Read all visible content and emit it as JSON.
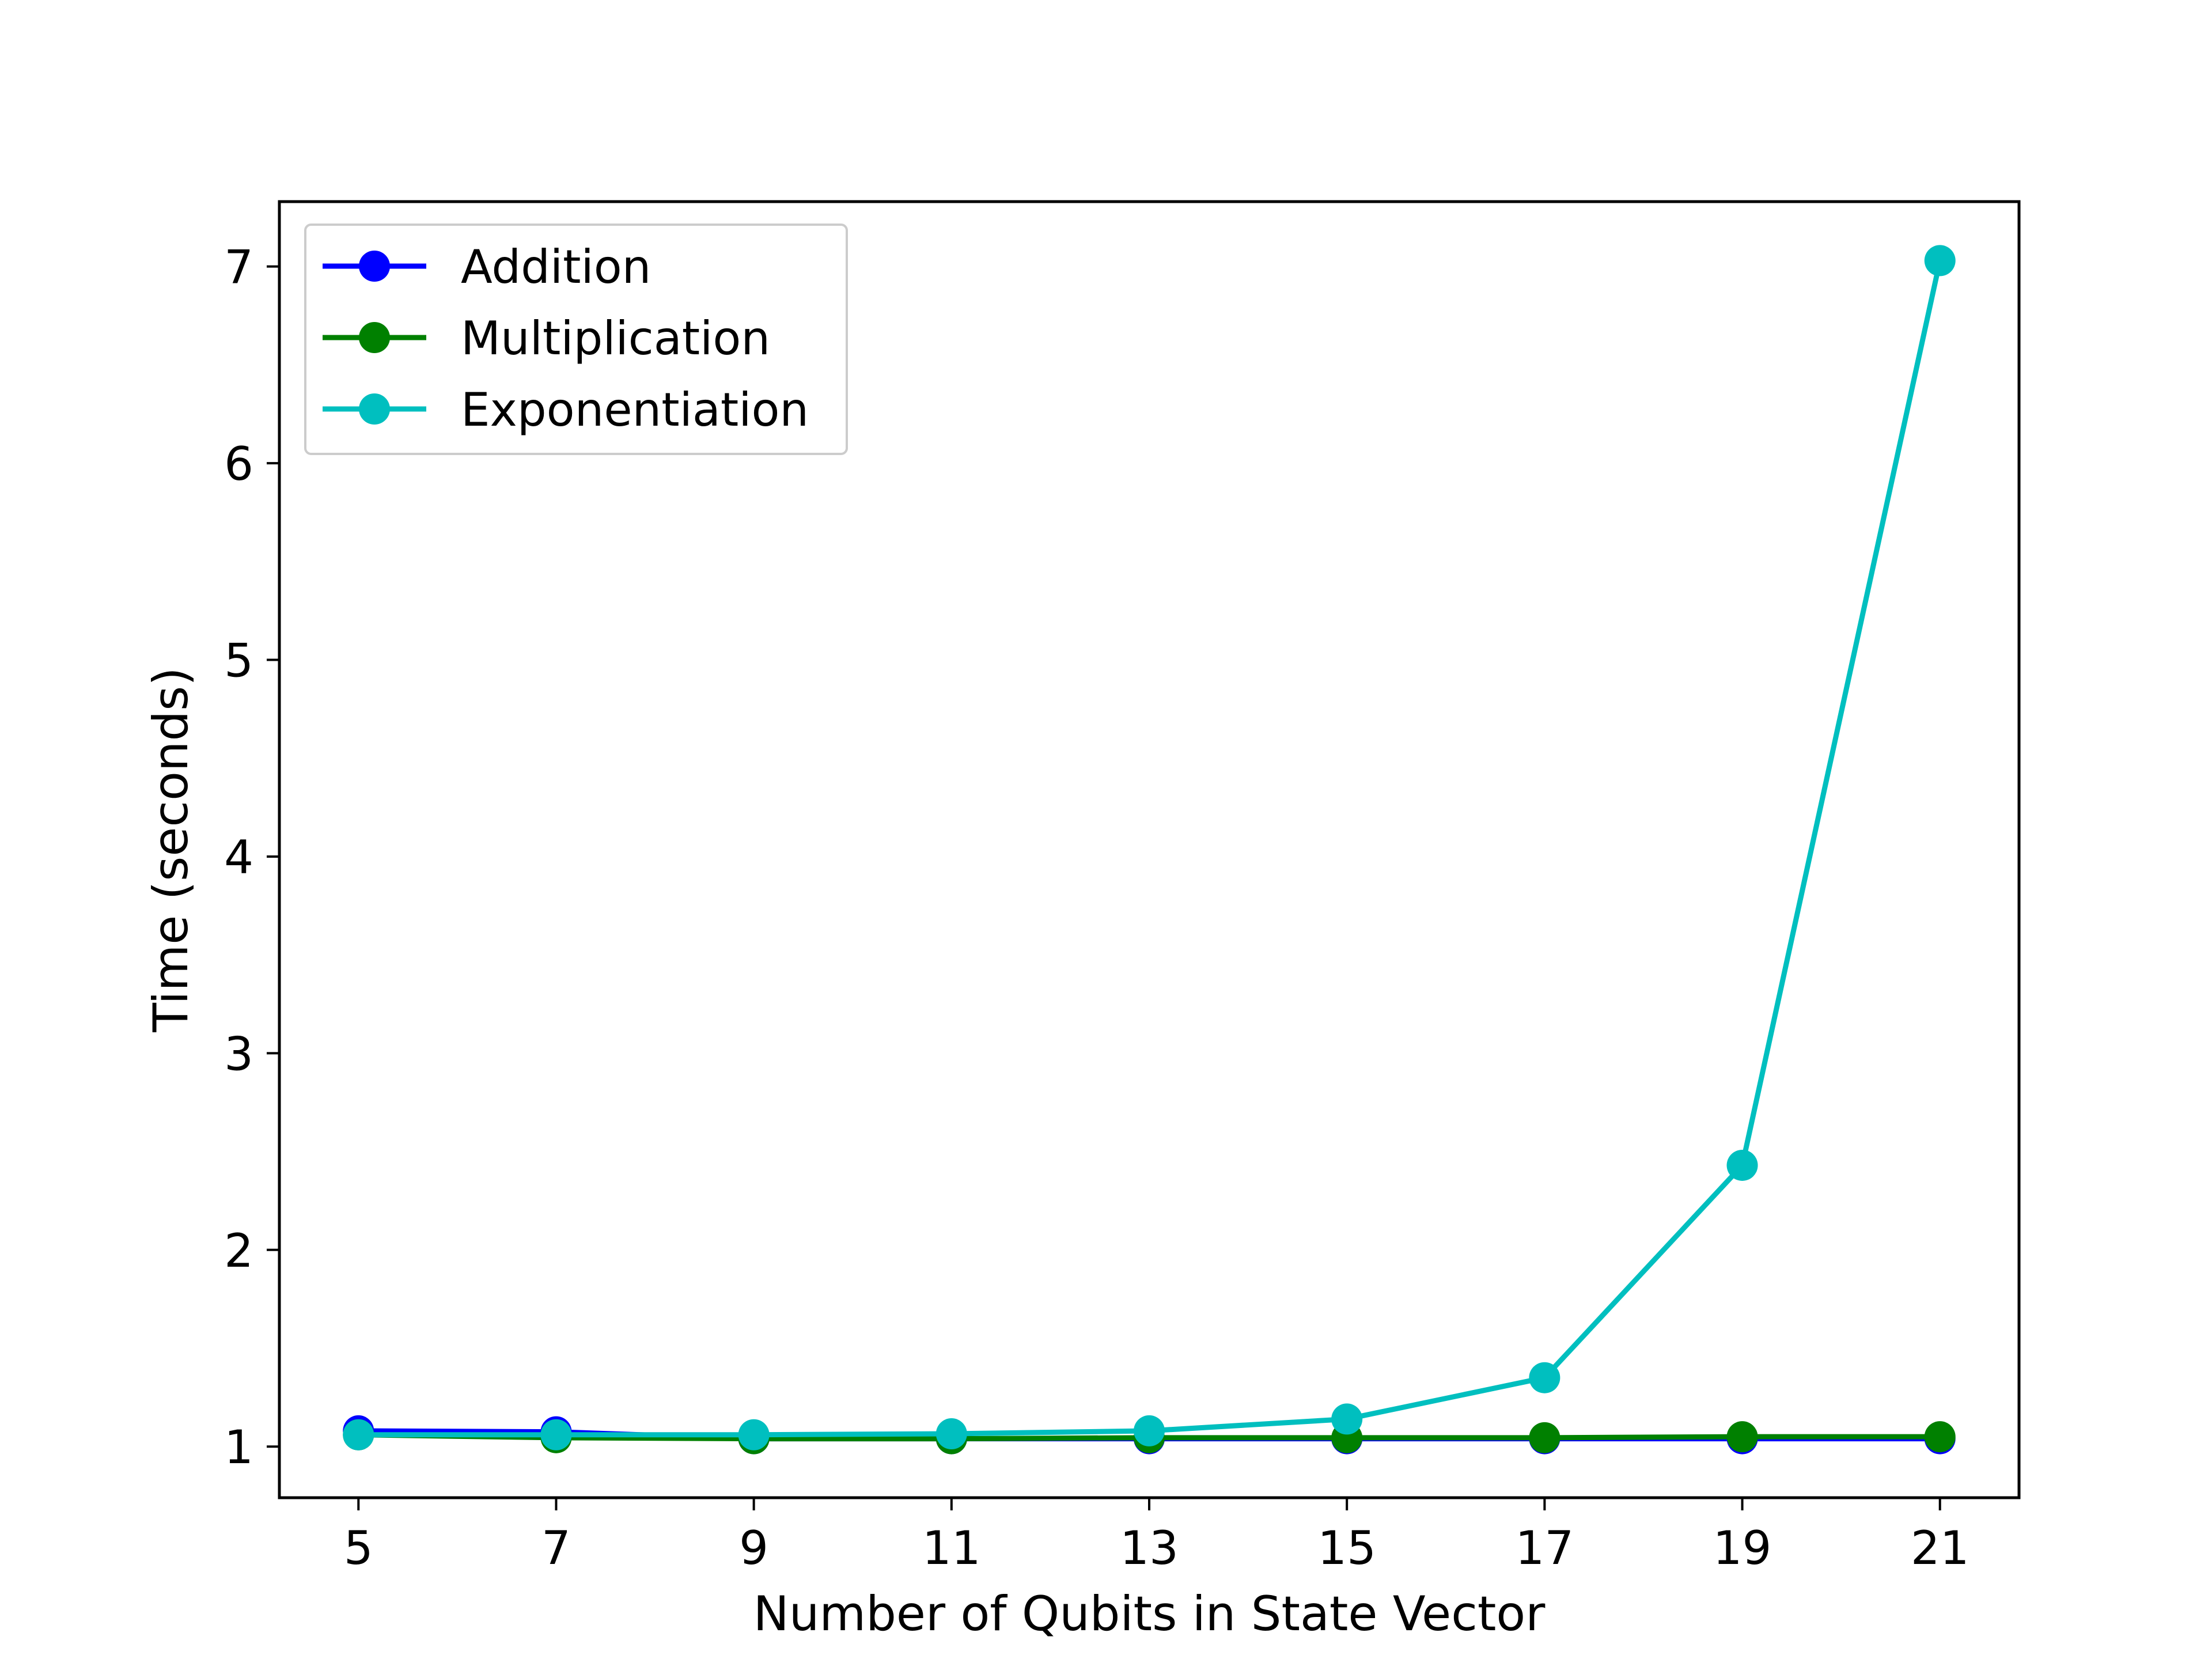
{
  "chart_data": {
    "type": "line",
    "title": "",
    "xlabel": "Number of Qubits in State Vector",
    "ylabel": "Time (seconds)",
    "x": [
      5,
      7,
      9,
      11,
      13,
      15,
      17,
      19,
      21
    ],
    "xticks": [
      "5",
      "7",
      "9",
      "11",
      "13",
      "15",
      "17",
      "19",
      "21"
    ],
    "yticks": [
      "1",
      "2",
      "3",
      "4",
      "5",
      "6",
      "7"
    ],
    "xlim": [
      4.2,
      21.8
    ],
    "ylim": [
      0.74,
      7.33
    ],
    "grid": false,
    "legend_position": "top-left",
    "series": [
      {
        "name": "Addition",
        "color": "#0000ff",
        "values": [
          1.08,
          1.075,
          1.04,
          1.04,
          1.04,
          1.04,
          1.04,
          1.04,
          1.04
        ]
      },
      {
        "name": "Multiplication",
        "color": "#008000",
        "values": [
          1.06,
          1.045,
          1.04,
          1.04,
          1.045,
          1.045,
          1.045,
          1.05,
          1.05
        ]
      },
      {
        "name": "Exponentiation",
        "color": "#00bfbf",
        "values": [
          1.06,
          1.06,
          1.06,
          1.065,
          1.08,
          1.14,
          1.35,
          2.43,
          7.03
        ]
      }
    ]
  }
}
